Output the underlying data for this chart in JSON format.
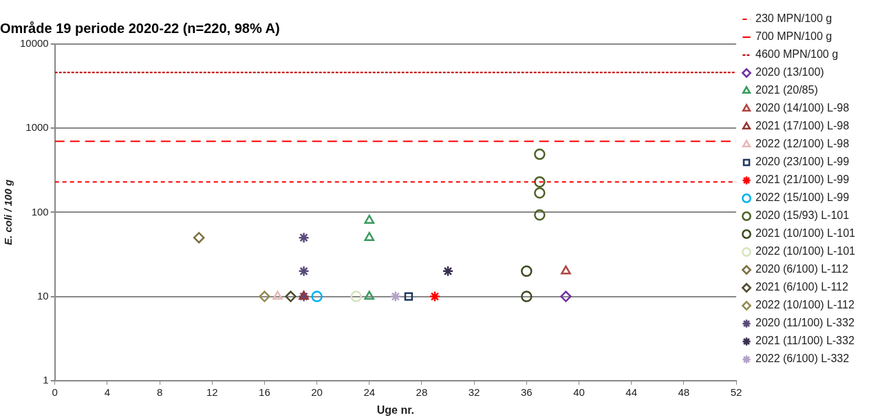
{
  "chart_data": {
    "type": "scatter",
    "title": "Område 19 periode 2020-22 (n=220, 98% A)",
    "xlabel": "Uge nr.",
    "ylabel": "E. coli / 100 g",
    "xlim": [
      0,
      52
    ],
    "xticks": [
      0,
      4,
      8,
      12,
      16,
      20,
      24,
      28,
      32,
      36,
      40,
      44,
      48,
      52
    ],
    "ylim": [
      1,
      10000
    ],
    "yticks": [
      1,
      10,
      100,
      1000,
      10000
    ],
    "log": "y",
    "grid": "y",
    "legend": "right",
    "ref_lines": [
      {
        "axis": "y",
        "value": 230,
        "label": "230 MPN/100 g",
        "color": "#ff0000",
        "line_style": "dashed"
      },
      {
        "axis": "y",
        "value": 700,
        "label": "700 MPN/100 g",
        "color": "#ff0000",
        "line_style": "long-dashed"
      },
      {
        "axis": "y",
        "value": 4600,
        "label": "4600 MPN/100 g",
        "color": "#c00000",
        "line_style": "dotted"
      }
    ],
    "series": [
      {
        "name": "2020 (13/100)",
        "color": "#7030a0",
        "marker": "diamond",
        "x": [
          39
        ],
        "values": [
          10
        ]
      },
      {
        "name": "2021 (20/85)",
        "color": "#3a9a5e",
        "marker": "triangle",
        "x": [
          24,
          24,
          24
        ],
        "values": [
          80,
          50,
          10
        ]
      },
      {
        "name": "2020 (14/100) L-98",
        "color": "#b0453f",
        "marker": "triangle",
        "x": [
          39
        ],
        "values": [
          20
        ]
      },
      {
        "name": "2021 (17/100) L-98",
        "color": "#963634",
        "marker": "triangle",
        "x": [
          19
        ],
        "values": [
          10
        ]
      },
      {
        "name": "2022 (12/100) L-98",
        "color": "#e6b9b8",
        "marker": "triangle",
        "x": [
          17
        ],
        "values": [
          10
        ]
      },
      {
        "name": "2020 (23/100) L-99",
        "color": "#1f3864",
        "marker": "square",
        "x": [
          27
        ],
        "values": [
          10
        ]
      },
      {
        "name": "2021 (21/100) L-99",
        "color": "#ff0000",
        "marker": "cross",
        "x": [
          29
        ],
        "values": [
          10
        ]
      },
      {
        "name": "2022 (15/100) L-99",
        "color": "#00b0f0",
        "marker": "circle",
        "x": [
          20
        ],
        "values": [
          10
        ]
      },
      {
        "name": "2020 (15/93) L-101",
        "color": "#4f6228",
        "marker": "circle",
        "x": [
          37,
          37,
          37,
          37
        ],
        "values": [
          490,
          230,
          170,
          93
        ]
      },
      {
        "name": "2021 (10/100) L-101",
        "color": "#3b4a1e",
        "marker": "circle",
        "x": [
          36,
          36
        ],
        "values": [
          20,
          10
        ]
      },
      {
        "name": "2022 (10/100) L-101",
        "color": "#d7e4bd",
        "marker": "circle",
        "x": [
          23
        ],
        "values": [
          10
        ]
      },
      {
        "name": "2020 (6/100) L-112",
        "color": "#7a7040",
        "marker": "diamond",
        "x": [
          11
        ],
        "values": [
          50
        ]
      },
      {
        "name": "2021 (6/100) L-112",
        "color": "#4d4a2a",
        "marker": "diamond",
        "x": [
          18
        ],
        "values": [
          10
        ]
      },
      {
        "name": "2022 (10/100) L-112",
        "color": "#948a54",
        "marker": "diamond",
        "x": [
          16
        ],
        "values": [
          10
        ]
      },
      {
        "name": "2020 (11/100) L-332",
        "color": "#5a4a7a",
        "marker": "cross",
        "x": [
          19,
          19,
          19
        ],
        "values": [
          50,
          20,
          10
        ]
      },
      {
        "name": "2021 (11/100) L-332",
        "color": "#3a2e4e",
        "marker": "cross",
        "x": [
          30
        ],
        "values": [
          20
        ]
      },
      {
        "name": "2022 (6/100) L-332",
        "color": "#b3a2c7",
        "marker": "cross",
        "x": [
          26
        ],
        "values": [
          10
        ]
      }
    ]
  }
}
